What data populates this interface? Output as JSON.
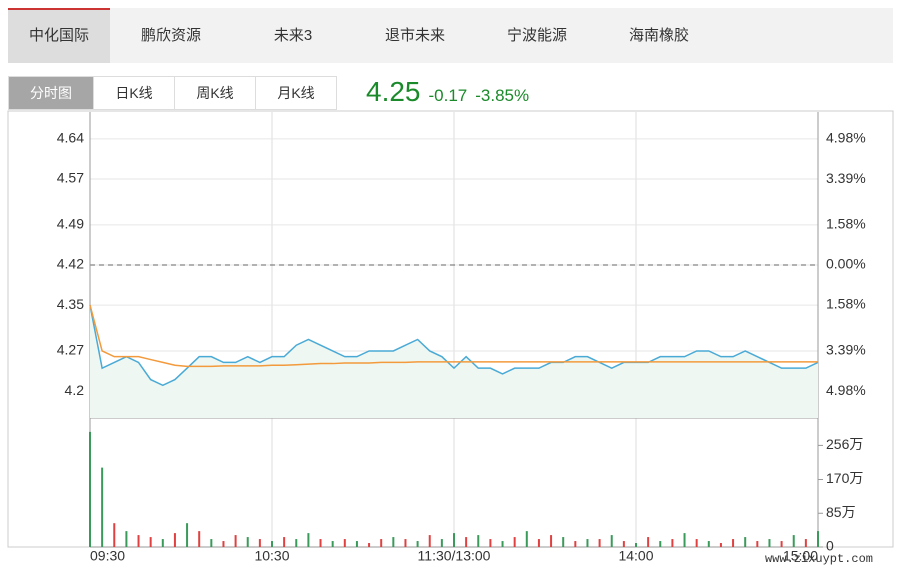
{
  "tabs": [
    "中化国际",
    "鹏欣资源",
    "未来3",
    "退市未来",
    "宁波能源",
    "海南橡胶"
  ],
  "subtabs": [
    "分时图",
    "日K线",
    "周K线",
    "月K线"
  ],
  "quote": {
    "price": "4.25",
    "change": "-0.17",
    "percent": "-3.85%"
  },
  "watermark": "www.zixuypt.com",
  "chart_data": [
    {
      "type": "line",
      "up_color": "#d9534f",
      "down_color": "#2e8b57",
      "zero_color": "#999999",
      "area_color": "#eef7f1",
      "x": [
        0,
        4,
        8,
        12,
        16,
        20,
        24,
        28,
        32,
        36,
        40,
        44,
        48,
        52,
        56,
        60,
        64,
        68,
        72,
        76,
        80,
        84,
        88,
        92,
        96,
        100,
        104,
        108,
        112,
        116,
        120,
        124,
        128,
        132,
        136,
        140,
        144,
        148,
        152,
        156,
        160,
        164,
        168,
        172,
        176,
        180,
        184,
        188,
        192,
        196,
        200,
        204,
        208,
        212,
        216,
        220,
        224,
        228,
        232,
        236,
        240
      ],
      "series": [
        {
          "color": "#4aaad6",
          "values": [
            4.35,
            4.24,
            4.25,
            4.26,
            4.25,
            4.22,
            4.21,
            4.22,
            4.24,
            4.26,
            4.26,
            4.25,
            4.25,
            4.26,
            4.25,
            4.26,
            4.26,
            4.28,
            4.29,
            4.28,
            4.27,
            4.26,
            4.26,
            4.27,
            4.27,
            4.27,
            4.28,
            4.29,
            4.27,
            4.26,
            4.24,
            4.26,
            4.24,
            4.24,
            4.23,
            4.24,
            4.24,
            4.24,
            4.25,
            4.25,
            4.26,
            4.26,
            4.25,
            4.24,
            4.25,
            4.25,
            4.25,
            4.26,
            4.26,
            4.26,
            4.27,
            4.27,
            4.26,
            4.26,
            4.27,
            4.26,
            4.25,
            4.24,
            4.24,
            4.24,
            4.25
          ]
        },
        {
          "color": "#f39a3c",
          "values": [
            4.35,
            4.27,
            4.26,
            4.26,
            4.26,
            4.255,
            4.25,
            4.245,
            4.243,
            4.243,
            4.243,
            4.244,
            4.244,
            4.244,
            4.244,
            4.245,
            4.245,
            4.246,
            4.247,
            4.248,
            4.248,
            4.249,
            4.249,
            4.249,
            4.25,
            4.25,
            4.25,
            4.251,
            4.251,
            4.251,
            4.251,
            4.251,
            4.251,
            4.251,
            4.251,
            4.251,
            4.251,
            4.251,
            4.251,
            4.251,
            4.251,
            4.251,
            4.251,
            4.251,
            4.251,
            4.251,
            4.251,
            4.251,
            4.251,
            4.251,
            4.251,
            4.251,
            4.251,
            4.251,
            4.251,
            4.251,
            4.251,
            4.251,
            4.251,
            4.251,
            4.251
          ]
        }
      ],
      "xlim": [
        0,
        240
      ],
      "xticks": [
        {
          "value": 0,
          "label": "09:30"
        },
        {
          "value": 60,
          "label": "10:30"
        },
        {
          "value": 120,
          "label": "11:30/13:00"
        },
        {
          "value": 180,
          "label": "14:00"
        },
        {
          "value": 240,
          "label": "15:00"
        }
      ],
      "ylim": [
        4.153,
        4.687
      ],
      "yticks": [
        4.64,
        4.57,
        4.49,
        4.42,
        4.35,
        4.27,
        4.2
      ],
      "y2lim": [
        -6.04,
        6.04
      ],
      "y2ticks": [
        {
          "value": 4.98,
          "label": "4.98%"
        },
        {
          "value": 3.39,
          "label": "3.39%"
        },
        {
          "value": 1.58,
          "label": "1.58%"
        },
        {
          "value": 0,
          "label": "0.00%"
        },
        {
          "value": -1.58,
          "label": "1.58%"
        },
        {
          "value": -3.39,
          "label": "3.39%"
        },
        {
          "value": -4.98,
          "label": "4.98%"
        }
      ]
    },
    {
      "type": "bar",
      "x": [
        0,
        4,
        8,
        12,
        16,
        20,
        24,
        28,
        32,
        36,
        40,
        44,
        48,
        52,
        56,
        60,
        64,
        68,
        72,
        76,
        80,
        84,
        88,
        92,
        96,
        100,
        104,
        108,
        112,
        116,
        120,
        124,
        128,
        132,
        136,
        140,
        144,
        148,
        152,
        156,
        160,
        164,
        168,
        172,
        176,
        180,
        184,
        188,
        192,
        196,
        200,
        204,
        208,
        212,
        216,
        220,
        224,
        228,
        232,
        236,
        240
      ],
      "values": [
        290,
        200,
        60,
        40,
        30,
        25,
        20,
        35,
        60,
        40,
        20,
        15,
        30,
        25,
        20,
        15,
        25,
        20,
        35,
        20,
        15,
        20,
        15,
        10,
        20,
        25,
        20,
        15,
        30,
        20,
        35,
        25,
        30,
        20,
        15,
        25,
        40,
        20,
        30,
        25,
        15,
        20,
        20,
        30,
        15,
        10,
        25,
        15,
        20,
        35,
        20,
        15,
        10,
        20,
        25,
        15,
        20,
        15,
        30,
        20,
        40
      ],
      "colors": [
        "#3a9a5a",
        "#3a9a5a",
        "#e04040",
        "#3a9a5a",
        "#e04040",
        "#e04040",
        "#3a9a5a",
        "#e04040",
        "#3a9a5a",
        "#e04040",
        "#3a9a5a",
        "#e04040",
        "#e04040",
        "#3a9a5a",
        "#e04040",
        "#3a9a5a",
        "#e04040",
        "#3a9a5a",
        "#3a9a5a",
        "#e04040",
        "#3a9a5a",
        "#e04040",
        "#3a9a5a",
        "#e04040",
        "#e04040",
        "#3a9a5a",
        "#e04040",
        "#3a9a5a",
        "#e04040",
        "#3a9a5a",
        "#3a9a5a",
        "#e04040",
        "#3a9a5a",
        "#e04040",
        "#3a9a5a",
        "#e04040",
        "#3a9a5a",
        "#e04040",
        "#e04040",
        "#3a9a5a",
        "#e04040",
        "#3a9a5a",
        "#e04040",
        "#3a9a5a",
        "#e04040",
        "#3a9a5a",
        "#e04040",
        "#3a9a5a",
        "#e04040",
        "#3a9a5a",
        "#e04040",
        "#3a9a5a",
        "#e04040",
        "#e04040",
        "#3a9a5a",
        "#e04040",
        "#3a9a5a",
        "#e04040",
        "#3a9a5a",
        "#e04040",
        "#3a9a5a"
      ],
      "ylim": [
        0,
        325
      ],
      "yticks": [
        {
          "value": 256,
          "label": "256万"
        },
        {
          "value": 170,
          "label": "170万"
        },
        {
          "value": 85,
          "label": "85万"
        },
        0
      ]
    }
  ]
}
